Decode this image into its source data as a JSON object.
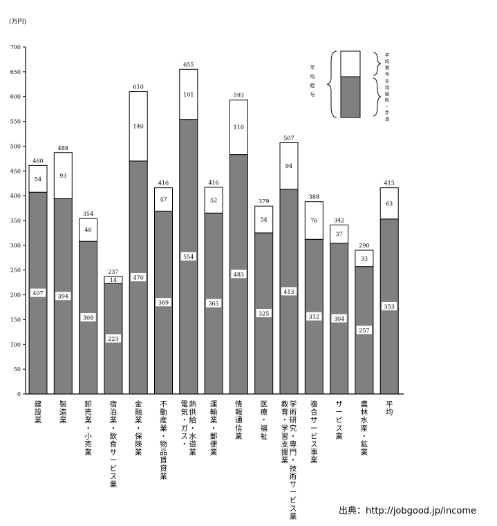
{
  "chart_data": {
    "type": "bar",
    "stacked": true,
    "unit_label": "(万円)",
    "ylim": [
      0,
      700
    ],
    "yticks": [
      0,
      50,
      100,
      150,
      200,
      250,
      300,
      350,
      400,
      450,
      500,
      550,
      600,
      650,
      700
    ],
    "categories": [
      "建設業",
      "製造業",
      "卸売業・小売業",
      "宿泊業・飲食サービス業",
      "金融業・保険業",
      "不動産業・物品賃貸業",
      "電気・ガス・熱供給・水道業",
      "運輸業・郵便業",
      "情報通信業",
      "医療・福祉",
      "学術研究・専門・技術サービス業 教育・学習支援業",
      "複合サービス事業",
      "サービス業",
      "農林水産・鉱業",
      "平均"
    ],
    "category_lines": [
      [
        "建設業"
      ],
      [
        "製造業"
      ],
      [
        "卸売業・小売業"
      ],
      [
        "宿泊業・飲食サービス業"
      ],
      [
        "金融業・保険業"
      ],
      [
        "不動産業・物品賃貸業"
      ],
      [
        "熱供給・水道業",
        "電気・ガス・"
      ],
      [
        "運輸業・郵便業"
      ],
      [
        "情報通信業"
      ],
      [
        "医療・福祉"
      ],
      [
        "学術研究・専門・技術サービス業",
        "教育・学習支援業"
      ],
      [
        "複合サービス事業"
      ],
      [
        "サービス業"
      ],
      [
        "農林水産・鉱業"
      ],
      [
        "平均"
      ]
    ],
    "series": [
      {
        "name": "平均給料・手当",
        "color": "#808080",
        "values": [
          407,
          394,
          308,
          223,
          470,
          369,
          554,
          365,
          483,
          325,
          413,
          312,
          304,
          257,
          353
        ]
      },
      {
        "name": "平均賞与",
        "color": "#ffffff",
        "values": [
          54,
          93,
          46,
          14,
          140,
          47,
          101,
          52,
          110,
          54,
          94,
          76,
          37,
          33,
          63
        ]
      }
    ],
    "totals": [
      460,
      488,
      354,
      237,
      610,
      416,
      655,
      416,
      593,
      379,
      507,
      388,
      342,
      290,
      415
    ],
    "legend": {
      "placement": "top-right",
      "bonus_label": "平均賞与",
      "salary_label": "平均給料・手当",
      "total_label": "平均給与"
    }
  },
  "source": "出典：http://jobgood.jp/income"
}
